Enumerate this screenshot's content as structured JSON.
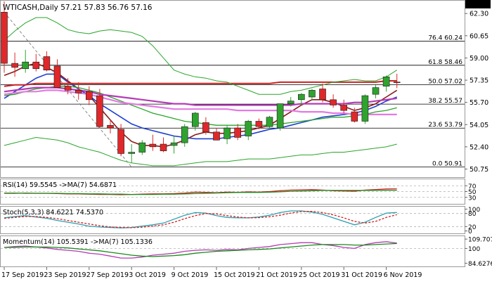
{
  "chart_data": {
    "type": "candlestick",
    "symbol": "WTICASH",
    "timeframe": "Daily",
    "header_text": "WTICASH,Daily  57.21 57.83 56.76 57.16",
    "ohlc_last": {
      "open": 57.21,
      "high": 57.83,
      "low": 56.76,
      "close": 57.16
    },
    "current_price_label": "57.16",
    "colors": {
      "up": "#2fa32f",
      "down": "#e0282a",
      "last_price_bg": "#000000",
      "ma_fast": "#8b1a1a",
      "ma_mid": "#1f3fd0",
      "ma_slow_green": "#2aa52a",
      "ma_red": "#cc2020",
      "ma_violet": "#b43cb4",
      "ma_pink": "#e37ae3",
      "bollinger": "#2aa52a",
      "fib_line": "#000000",
      "trend_dash": "#888888"
    },
    "y_axis_labels": [
      "62.30",
      "60.65",
      "59.00",
      "57.35",
      "55.70",
      "54.05",
      "52.40",
      "50.75"
    ],
    "y_axis_values": [
      62.3,
      60.65,
      59.0,
      57.35,
      55.7,
      54.05,
      52.4,
      50.75
    ],
    "ylim": [
      50.2,
      63.2
    ],
    "x_labels": [
      "17 Sep 2019",
      "23 Sep 2019",
      "27 Sep 2019",
      "3 Oct 2019",
      "9 Oct 2019",
      "15 Oct 2019",
      "21 Oct 2019",
      "25 Oct 2019",
      "31 Oct 2019",
      "6 Nov 2019"
    ],
    "x_label_index": [
      0,
      4,
      8,
      12,
      16,
      20,
      24,
      28,
      32,
      36
    ],
    "fibonacci": [
      {
        "label": "76.4 60.24",
        "value": 60.24
      },
      {
        "label": "61.8 58.46",
        "value": 58.46
      },
      {
        "label": "50.0 57.02",
        "value": 57.02
      },
      {
        "label": "38.2 55.57",
        "value": 55.57
      },
      {
        "label": "23.6 53.79",
        "value": 53.79
      },
      {
        "label": "0.0 50.91",
        "value": 50.91
      }
    ],
    "candles": [
      {
        "o": 62.4,
        "h": 63.2,
        "l": 57.9,
        "c": 58.6
      },
      {
        "o": 58.6,
        "h": 59.4,
        "l": 57.6,
        "c": 58.3
      },
      {
        "o": 58.2,
        "h": 59.6,
        "l": 57.9,
        "c": 58.7
      },
      {
        "o": 58.7,
        "h": 59.3,
        "l": 58.0,
        "c": 58.2
      },
      {
        "o": 59.1,
        "h": 59.5,
        "l": 58.0,
        "c": 58.1
      },
      {
        "o": 58.4,
        "h": 58.9,
        "l": 56.8,
        "c": 56.8
      },
      {
        "o": 56.9,
        "h": 57.5,
        "l": 56.3,
        "c": 56.6
      },
      {
        "o": 56.6,
        "h": 57.2,
        "l": 55.9,
        "c": 56.4
      },
      {
        "o": 56.5,
        "h": 56.9,
        "l": 55.5,
        "c": 55.9
      },
      {
        "o": 56.2,
        "h": 56.7,
        "l": 53.8,
        "c": 53.9
      },
      {
        "o": 54.0,
        "h": 54.4,
        "l": 53.4,
        "c": 53.8
      },
      {
        "o": 53.7,
        "h": 54.1,
        "l": 51.7,
        "c": 51.9
      },
      {
        "o": 51.9,
        "h": 52.6,
        "l": 51.2,
        "c": 52.0
      },
      {
        "o": 52.0,
        "h": 52.9,
        "l": 51.8,
        "c": 52.7
      },
      {
        "o": 52.6,
        "h": 53.3,
        "l": 52.1,
        "c": 52.4
      },
      {
        "o": 52.6,
        "h": 53.1,
        "l": 52.0,
        "c": 52.1
      },
      {
        "o": 52.5,
        "h": 53.2,
        "l": 51.9,
        "c": 52.7
      },
      {
        "o": 52.7,
        "h": 54.1,
        "l": 52.4,
        "c": 53.9
      },
      {
        "o": 53.9,
        "h": 55.0,
        "l": 53.6,
        "c": 54.9
      },
      {
        "o": 54.2,
        "h": 54.6,
        "l": 53.3,
        "c": 53.5
      },
      {
        "o": 53.5,
        "h": 53.8,
        "l": 52.9,
        "c": 52.9
      },
      {
        "o": 53.0,
        "h": 54.0,
        "l": 52.6,
        "c": 53.8
      },
      {
        "o": 53.8,
        "h": 54.1,
        "l": 52.9,
        "c": 53.1
      },
      {
        "o": 53.2,
        "h": 54.4,
        "l": 52.9,
        "c": 54.3
      },
      {
        "o": 54.3,
        "h": 54.5,
        "l": 53.7,
        "c": 53.9
      },
      {
        "o": 53.9,
        "h": 54.7,
        "l": 53.7,
        "c": 54.6
      },
      {
        "o": 53.8,
        "h": 55.6,
        "l": 53.6,
        "c": 55.6
      },
      {
        "o": 55.6,
        "h": 56.1,
        "l": 55.4,
        "c": 55.8
      },
      {
        "o": 55.9,
        "h": 56.4,
        "l": 55.5,
        "c": 56.3
      },
      {
        "o": 56.1,
        "h": 56.7,
        "l": 55.9,
        "c": 56.6
      },
      {
        "o": 56.7,
        "h": 57.1,
        "l": 55.7,
        "c": 55.9
      },
      {
        "o": 55.9,
        "h": 56.3,
        "l": 55.3,
        "c": 55.5
      },
      {
        "o": 55.5,
        "h": 55.9,
        "l": 54.9,
        "c": 55.1
      },
      {
        "o": 55.0,
        "h": 55.3,
        "l": 54.2,
        "c": 54.3
      },
      {
        "o": 54.3,
        "h": 56.3,
        "l": 54.1,
        "c": 56.2
      },
      {
        "o": 56.3,
        "h": 57.0,
        "l": 56.0,
        "c": 56.8
      },
      {
        "o": 56.9,
        "h": 57.7,
        "l": 56.5,
        "c": 57.6
      },
      {
        "o": 57.21,
        "h": 57.83,
        "l": 56.76,
        "c": 57.16
      }
    ],
    "overlays": [
      {
        "key": "ma_fast",
        "values": [
          57.7,
          58.0,
          58.4,
          58.6,
          58.3,
          57.9,
          57.3,
          56.7,
          56.2,
          55.3,
          54.4,
          53.5,
          52.8,
          52.5,
          52.5,
          52.4,
          52.6,
          52.9,
          53.3,
          53.5,
          53.4,
          53.4,
          53.5,
          53.6,
          53.8,
          54.0,
          54.5,
          55.0,
          55.5,
          55.9,
          55.9,
          55.7,
          55.4,
          55.1,
          55.3,
          55.6,
          56.1,
          56.6
        ]
      },
      {
        "key": "ma_mid",
        "values": [
          56.0,
          56.5,
          57.0,
          57.5,
          57.8,
          57.8,
          57.2,
          56.7,
          56.2,
          55.6,
          55.1,
          54.6,
          54.1,
          53.8,
          53.6,
          53.4,
          53.2,
          53.1,
          53.0,
          53.0,
          53.0,
          53.1,
          53.2,
          53.3,
          53.5,
          53.7,
          53.8,
          54.0,
          54.2,
          54.4,
          54.6,
          54.7,
          54.8,
          54.9,
          55.1,
          55.4,
          55.8,
          56.1
        ]
      },
      {
        "key": "ma_slow_green",
        "values": [
          56.2,
          56.3,
          56.5,
          56.7,
          56.8,
          56.9,
          56.9,
          56.8,
          56.6,
          56.4,
          56.1,
          55.8,
          55.5,
          55.2,
          54.9,
          54.7,
          54.5,
          54.3,
          54.2,
          54.1,
          54.0,
          54.0,
          54.0,
          54.0,
          54.0,
          54.0,
          54.1,
          54.2,
          54.3,
          54.4,
          54.5,
          54.6,
          54.6,
          54.7,
          54.8,
          55.0,
          55.1,
          55.3
        ]
      },
      {
        "key": "ma_violet",
        "values": [
          56.5,
          56.6,
          56.7,
          56.8,
          56.8,
          56.8,
          56.7,
          56.6,
          56.5,
          56.3,
          56.2,
          56.1,
          56.0,
          55.9,
          55.8,
          55.7,
          55.6,
          55.6,
          55.5,
          55.5,
          55.5,
          55.5,
          55.5,
          55.5,
          55.5,
          55.5,
          55.5,
          55.5,
          55.6,
          55.6,
          55.6,
          55.6,
          55.6,
          55.7,
          55.7,
          55.8,
          55.9,
          56.0
        ]
      },
      {
        "key": "ma_pink",
        "values": [
          56.3,
          56.4,
          56.5,
          56.5,
          56.6,
          56.6,
          56.5,
          56.4,
          56.3,
          56.1,
          55.9,
          55.7,
          55.6,
          55.5,
          55.4,
          55.3,
          55.2,
          55.2,
          55.2,
          55.2,
          55.2,
          55.2,
          55.1,
          55.1,
          55.1,
          55.1,
          55.1,
          55.1,
          55.0,
          55.0,
          55.0,
          54.9,
          54.9,
          54.8,
          54.8,
          54.8,
          54.8,
          54.8
        ]
      },
      {
        "key": "ma_red",
        "values": [
          56.9,
          57.0,
          57.0,
          57.1,
          57.1,
          57.1,
          57.1,
          57.1,
          57.1,
          57.1,
          57.1,
          57.1,
          57.1,
          57.1,
          57.1,
          57.1,
          57.1,
          57.1,
          57.1,
          57.1,
          57.1,
          57.1,
          57.1,
          57.1,
          57.1,
          57.1,
          57.2,
          57.2,
          57.2,
          57.2,
          57.2,
          57.2,
          57.2,
          57.2,
          57.2,
          57.2,
          57.3,
          57.3
        ]
      },
      {
        "key": "bollinger",
        "values": [
          60.3,
          61.0,
          61.6,
          62.0,
          62.0,
          61.6,
          61.1,
          60.9,
          60.8,
          61.0,
          61.1,
          61.0,
          60.9,
          60.6,
          59.9,
          59.0,
          58.1,
          57.8,
          57.6,
          57.5,
          57.3,
          57.2,
          56.9,
          56.6,
          56.3,
          56.3,
          56.3,
          56.5,
          56.6,
          56.8,
          57.0,
          57.2,
          57.3,
          57.4,
          57.3,
          57.3,
          57.6,
          58.1
        ]
      },
      {
        "key": "bollinger",
        "values": [
          52.5,
          52.7,
          52.9,
          53.1,
          53.0,
          52.9,
          52.7,
          52.4,
          52.2,
          52.0,
          51.7,
          51.4,
          51.2,
          51.1,
          51.0,
          51.0,
          51.0,
          51.1,
          51.2,
          51.3,
          51.3,
          51.3,
          51.4,
          51.5,
          51.5,
          51.5,
          51.6,
          51.7,
          51.8,
          51.8,
          51.9,
          52.0,
          52.0,
          52.1,
          52.2,
          52.3,
          52.4,
          52.6
        ]
      }
    ],
    "trend_line": {
      "from": {
        "index": 0,
        "value": 62.4
      },
      "to": {
        "index": 12,
        "value": 50.9
      }
    },
    "panels": [
      {
        "name": "rsi",
        "title": "RSI(14) 59.5545  ->MA(7) 54.6871",
        "axis_labels": [
          "70",
          "50",
          "30"
        ],
        "axis_values": [
          70,
          50,
          30
        ],
        "ylim": [
          10,
          90
        ],
        "levels": [
          70,
          50,
          30
        ],
        "series": [
          {
            "name": "RSI(14)",
            "color": "#d42020",
            "values": [
              44,
              44,
              45,
              44,
              44,
              43,
              42,
              42,
              41,
              40,
              40,
              39,
              40,
              41,
              42,
              42,
              43,
              45,
              48,
              47,
              46,
              48,
              47,
              49,
              48,
              50,
              53,
              55,
              56,
              57,
              55,
              53,
              52,
              51,
              55,
              57,
              59,
              59.55
            ]
          },
          {
            "name": "MA(7)",
            "color": "#1a8a1a",
            "values": [
              45,
              45,
              44,
              44,
              44,
              44,
              43,
              43,
              42,
              42,
              41,
              41,
              40,
              40,
              40,
              41,
              41,
              42,
              43,
              44,
              45,
              46,
              47,
              47,
              47,
              48,
              49,
              51,
              52,
              53,
              54,
              54,
              54,
              54,
              54,
              54,
              54.5,
              54.69
            ]
          }
        ]
      },
      {
        "name": "stochastic",
        "title": "Stoch(5,3,3) 84.6221  74.5370",
        "axis_labels": [
          "100",
          "80",
          "20",
          "0"
        ],
        "axis_values": [
          100,
          80,
          20,
          0
        ],
        "ylim": [
          -8,
          108
        ],
        "levels": [
          80,
          20
        ],
        "series": [
          {
            "name": "%K",
            "color": "#2a9fb0",
            "values": [
              60,
              66,
              70,
              64,
              58,
              48,
              40,
              32,
              22,
              18,
              16,
              14,
              16,
              22,
              28,
              36,
              54,
              72,
              84,
              82,
              70,
              62,
              60,
              60,
              64,
              72,
              84,
              92,
              92,
              86,
              76,
              60,
              44,
              28,
              40,
              62,
              82,
              84.62
            ]
          },
          {
            "name": "%D",
            "color": "#d42020",
            "dashed": true,
            "values": [
              58,
              62,
              66,
              66,
              62,
              56,
              48,
              40,
              32,
              24,
              18,
              16,
              15,
              17,
              22,
              28,
              40,
              56,
              70,
              80,
              78,
              70,
              64,
              60,
              61,
              65,
              72,
              82,
              89,
              90,
              84,
              74,
              60,
              44,
              36,
              44,
              62,
              74.54
            ]
          }
        ]
      },
      {
        "name": "momentum",
        "title": "Momentum(14) 105.5391  ->MA(7) 105.1336",
        "axis_labels": [
          "109.7072",
          "100",
          "84.6276"
        ],
        "axis_values": [
          109.7072,
          100,
          84.6276
        ],
        "ylim": [
          82,
          112
        ],
        "levels": [
          100
        ],
        "series": [
          {
            "name": "Momentum(14)",
            "color": "#b43cb4",
            "values": [
              101,
              102,
              102.5,
              101.5,
              100.5,
              99,
              98,
              97,
              95,
              94,
              92,
              90,
              90,
              91,
              93,
              94,
              95,
              97,
              98,
              98.5,
              98,
              99,
              98.5,
              100,
              101,
              102,
              104,
              105,
              106,
              106,
              104,
              103,
              101,
              100,
              104,
              106,
              107,
              105.54
            ]
          },
          {
            "name": "MA(7)",
            "color": "#1a8a1a",
            "values": [
              101,
              101,
              101.5,
              101.5,
              101.5,
              101,
              100.5,
              99.5,
              98.5,
              97.5,
              96,
              94.5,
              93,
              92,
              91.5,
              92,
              92.5,
              93.5,
              95,
              96,
              97,
              97.5,
              98,
              98.5,
              99,
              99.5,
              100.5,
              101.5,
              102.5,
              103.5,
              104,
              104,
              104,
              103.5,
              103.5,
              104,
              104.6,
              105.13
            ]
          }
        ]
      }
    ]
  }
}
